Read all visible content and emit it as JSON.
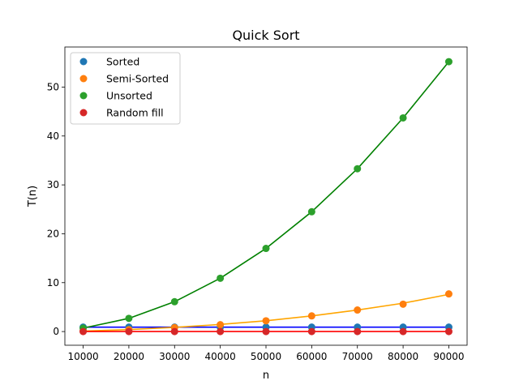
{
  "chart_data": {
    "type": "scatter",
    "title": "Quick Sort",
    "xlabel": "n",
    "ylabel": "T(n)",
    "x": [
      10000,
      20000,
      30000,
      40000,
      50000,
      60000,
      70000,
      80000,
      90000
    ],
    "xlim": [
      6000,
      94000
    ],
    "ylim": [
      -2.8,
      58.2
    ],
    "xticks": [
      10000,
      20000,
      30000,
      40000,
      50000,
      60000,
      70000,
      80000,
      90000
    ],
    "yticks": [
      0,
      10,
      20,
      30,
      40,
      50
    ],
    "grid": false,
    "legend_position": "top-left",
    "series": [
      {
        "name": "Sorted",
        "values": [
          0.9,
          0.9,
          0.9,
          0.9,
          0.9,
          0.9,
          0.9,
          0.9,
          0.9
        ],
        "marker_color": "#1f77b4",
        "fit": [
          0.9,
          0.9,
          0.9,
          0.9,
          0.9,
          0.9,
          0.9,
          0.9,
          0.9
        ],
        "line_color": "#0000ff"
      },
      {
        "name": "Semi-Sorted",
        "values": [
          0.1,
          0.4,
          0.8,
          1.4,
          2.2,
          3.2,
          4.4,
          5.6,
          7.7
        ],
        "marker_color": "#ff7f0e",
        "fit": [
          0.1,
          0.4,
          0.85,
          1.45,
          2.2,
          3.2,
          4.4,
          5.8,
          7.6
        ],
        "line_color": "#ffa500"
      },
      {
        "name": "Unsorted",
        "values": [
          0.7,
          2.7,
          6.1,
          10.9,
          17.0,
          24.5,
          33.3,
          43.7,
          55.2
        ],
        "marker_color": "#2ca02c",
        "fit": [
          0.7,
          2.7,
          6.1,
          10.9,
          17.0,
          24.5,
          33.3,
          43.7,
          55.2
        ],
        "line_color": "#008000"
      },
      {
        "name": "Random fill",
        "values": [
          0.0,
          0.0,
          0.0,
          0.0,
          0.0,
          0.0,
          0.0,
          0.0,
          0.0
        ],
        "marker_color": "#d62728",
        "fit": [
          0.0,
          0.0,
          0.0,
          0.0,
          0.0,
          0.0,
          0.0,
          0.0,
          0.0
        ],
        "line_color": "#ff0000"
      }
    ]
  }
}
